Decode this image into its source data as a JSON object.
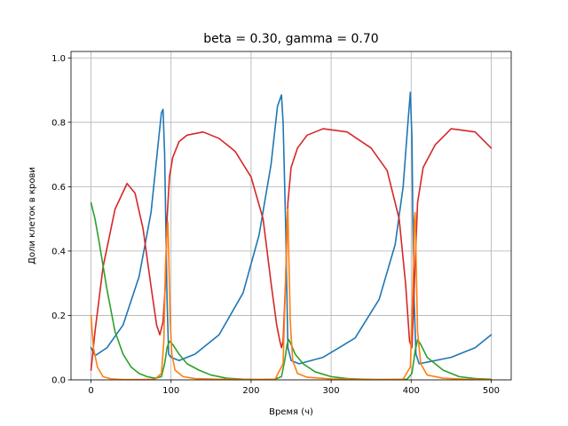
{
  "chart_data": {
    "type": "line",
    "title": "beta = 0.30, gamma = 0.70",
    "xlabel": "Время (ч)",
    "ylabel": "Доли клеток в крови",
    "xlim": [
      -25,
      525
    ],
    "ylim": [
      0,
      1.02
    ],
    "xticks": [
      0,
      100,
      200,
      300,
      400,
      500
    ],
    "yticks": [
      0.0,
      0.2,
      0.4,
      0.6,
      0.8,
      1.0
    ],
    "grid": true,
    "series": [
      {
        "color": "#1f77b4",
        "x": [
          0,
          5,
          20,
          40,
          60,
          75,
          85,
          88,
          90,
          92,
          95,
          97,
          100,
          110,
          130,
          160,
          190,
          210,
          225,
          233,
          238,
          240,
          243,
          246,
          250,
          260,
          290,
          330,
          360,
          380,
          390,
          396,
          399,
          401,
          403,
          406,
          410,
          420,
          450,
          480,
          500
        ],
        "y": [
          0.1,
          0.075,
          0.1,
          0.17,
          0.32,
          0.52,
          0.76,
          0.83,
          0.84,
          0.7,
          0.25,
          0.08,
          0.07,
          0.06,
          0.08,
          0.14,
          0.27,
          0.45,
          0.67,
          0.85,
          0.885,
          0.8,
          0.5,
          0.1,
          0.06,
          0.05,
          0.07,
          0.13,
          0.25,
          0.42,
          0.6,
          0.8,
          0.893,
          0.75,
          0.3,
          0.08,
          0.05,
          0.055,
          0.07,
          0.1,
          0.14
        ]
      },
      {
        "color": "#d62728",
        "x": [
          0,
          5,
          15,
          30,
          45,
          55,
          65,
          75,
          82,
          86,
          90,
          93,
          95,
          98,
          102,
          110,
          120,
          140,
          160,
          180,
          200,
          215,
          225,
          232,
          236,
          238,
          240,
          243,
          246,
          250,
          258,
          270,
          290,
          320,
          350,
          370,
          385,
          393,
          398,
          401,
          404,
          408,
          415,
          430,
          450,
          480,
          500
        ],
        "y": [
          0.03,
          0.15,
          0.35,
          0.53,
          0.61,
          0.58,
          0.47,
          0.29,
          0.17,
          0.14,
          0.18,
          0.3,
          0.5,
          0.63,
          0.69,
          0.74,
          0.76,
          0.77,
          0.75,
          0.71,
          0.63,
          0.5,
          0.3,
          0.17,
          0.12,
          0.1,
          0.12,
          0.3,
          0.55,
          0.66,
          0.72,
          0.76,
          0.78,
          0.77,
          0.72,
          0.65,
          0.5,
          0.3,
          0.12,
          0.1,
          0.3,
          0.55,
          0.66,
          0.73,
          0.78,
          0.77,
          0.72
        ]
      },
      {
        "color": "#2ca02c",
        "x": [
          0,
          5,
          10,
          20,
          30,
          40,
          50,
          60,
          70,
          80,
          88,
          92,
          95,
          98,
          102,
          110,
          120,
          135,
          150,
          170,
          190,
          210,
          230,
          238,
          242,
          245,
          247,
          250,
          255,
          265,
          280,
          300,
          320,
          340,
          360,
          380,
          395,
          401,
          405,
          408,
          412,
          420,
          440,
          460,
          480,
          500
        ],
        "y": [
          0.55,
          0.5,
          0.43,
          0.28,
          0.15,
          0.08,
          0.04,
          0.02,
          0.01,
          0.005,
          0.01,
          0.05,
          0.1,
          0.12,
          0.11,
          0.08,
          0.05,
          0.03,
          0.015,
          0.005,
          0.002,
          0.001,
          0.002,
          0.01,
          0.06,
          0.11,
          0.125,
          0.11,
          0.08,
          0.05,
          0.025,
          0.01,
          0.004,
          0.002,
          0.001,
          0.001,
          0.002,
          0.02,
          0.09,
          0.125,
          0.11,
          0.07,
          0.03,
          0.01,
          0.004,
          0.002
        ]
      },
      {
        "color": "#ff7f0e",
        "x": [
          0,
          3,
          8,
          15,
          25,
          40,
          60,
          80,
          88,
          91,
          93,
          95,
          96,
          97,
          99,
          101,
          105,
          115,
          130,
          160,
          200,
          230,
          240,
          243,
          245,
          246,
          247,
          249,
          252,
          258,
          270,
          300,
          350,
          390,
          399,
          402,
          404,
          405,
          406,
          408,
          412,
          420,
          440,
          470,
          500
        ],
        "y": [
          0.2,
          0.1,
          0.04,
          0.01,
          0.003,
          0.001,
          0.001,
          0.002,
          0.02,
          0.12,
          0.35,
          0.47,
          0.49,
          0.4,
          0.18,
          0.08,
          0.03,
          0.01,
          0.004,
          0.002,
          0.001,
          0.002,
          0.05,
          0.3,
          0.5,
          0.53,
          0.4,
          0.18,
          0.06,
          0.02,
          0.008,
          0.003,
          0.001,
          0.002,
          0.04,
          0.28,
          0.5,
          0.52,
          0.4,
          0.15,
          0.05,
          0.015,
          0.005,
          0.002,
          0.001
        ]
      }
    ]
  }
}
